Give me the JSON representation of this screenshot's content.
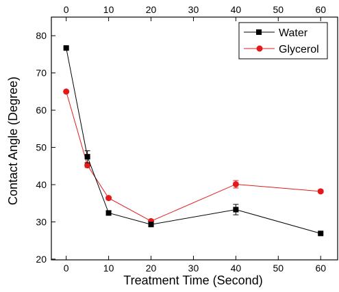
{
  "chart_data": {
    "type": "line",
    "xlabel": "Treatment Time (Second)",
    "ylabel": "Contact Angle (Degree)",
    "x_ticks": [
      0,
      10,
      20,
      30,
      40,
      50,
      60
    ],
    "top_x_ticks": [
      0,
      10,
      20,
      30,
      40,
      50,
      60
    ],
    "y_ticks": [
      20,
      30,
      40,
      50,
      60,
      70,
      80
    ],
    "xlim": [
      -3.5,
      64
    ],
    "ylim": [
      19.8,
      85
    ],
    "grid": false,
    "legend_position": "top-right",
    "x": [
      0,
      5,
      10,
      20,
      40,
      60
    ],
    "series": [
      {
        "name": "Water",
        "color": "#000000",
        "marker": "square",
        "values": [
          76.7,
          47.5,
          32.4,
          29.3,
          33.3,
          26.9
        ],
        "error": [
          0.3,
          1.6,
          0.6,
          0.4,
          1.4,
          0.3
        ]
      },
      {
        "name": "Glycerol",
        "color": "#e31a1c",
        "marker": "circle",
        "values": [
          65.0,
          45.2,
          36.4,
          30.2,
          40.1,
          38.2
        ],
        "error": [
          0.3,
          0.6,
          0.4,
          0.3,
          1.0,
          0.4
        ]
      }
    ]
  }
}
